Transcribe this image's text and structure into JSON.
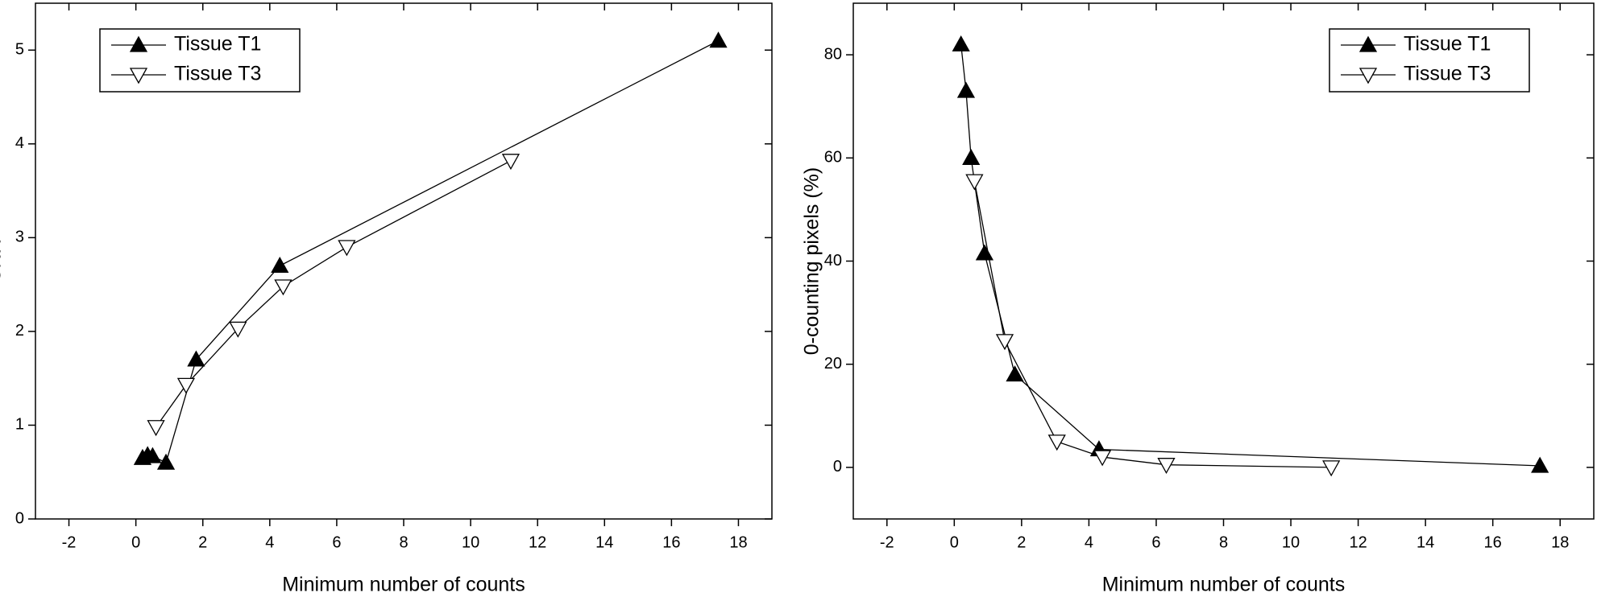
{
  "chart_data": [
    {
      "type": "line",
      "xlabel": "Minimum number of counts",
      "ylabel": "CNR",
      "xlim": [
        -3,
        19
      ],
      "ylim": [
        0,
        5.5
      ],
      "xticks": [
        -2,
        0,
        2,
        4,
        6,
        8,
        10,
        12,
        14,
        16,
        18
      ],
      "yticks": [
        0,
        1,
        2,
        3,
        4,
        5
      ],
      "legend": "upper-left",
      "series": [
        {
          "name": "Tissue T1",
          "color": "#000000",
          "marker": "triangle-up",
          "marker_fill": "#000000",
          "x": [
            0.2,
            0.35,
            0.5,
            0.9,
            1.8,
            4.3,
            17.4
          ],
          "values": [
            0.65,
            0.68,
            0.67,
            0.6,
            1.7,
            2.7,
            5.1
          ]
        },
        {
          "name": "Tissue T3",
          "color": "#000000",
          "marker": "triangle-down",
          "marker_fill": "#ffffff",
          "x": [
            0.6,
            1.5,
            3.05,
            4.4,
            6.3,
            11.2
          ],
          "values": [
            0.98,
            1.43,
            2.03,
            2.48,
            2.9,
            3.82
          ]
        }
      ]
    },
    {
      "type": "line",
      "xlabel": "Minimum number of counts",
      "ylabel": "0-counting pixels (%)",
      "xlim": [
        -3,
        19
      ],
      "ylim": [
        -10,
        90
      ],
      "xticks": [
        -2,
        0,
        2,
        4,
        6,
        8,
        10,
        12,
        14,
        16,
        18
      ],
      "yticks": [
        0,
        20,
        40,
        60,
        80
      ],
      "legend": "upper-right",
      "series": [
        {
          "name": "Tissue T1",
          "color": "#000000",
          "marker": "triangle-up",
          "marker_fill": "#000000",
          "x": [
            0.2,
            0.35,
            0.5,
            0.9,
            1.8,
            4.3,
            17.4
          ],
          "values": [
            82,
            73,
            60,
            41.5,
            18,
            3.5,
            0.3
          ]
        },
        {
          "name": "Tissue T3",
          "color": "#000000",
          "marker": "triangle-down",
          "marker_fill": "#ffffff",
          "x": [
            0.6,
            1.5,
            3.05,
            4.4,
            6.3,
            11.2
          ],
          "values": [
            55.5,
            24.5,
            5,
            2,
            0.5,
            0
          ]
        }
      ]
    }
  ]
}
